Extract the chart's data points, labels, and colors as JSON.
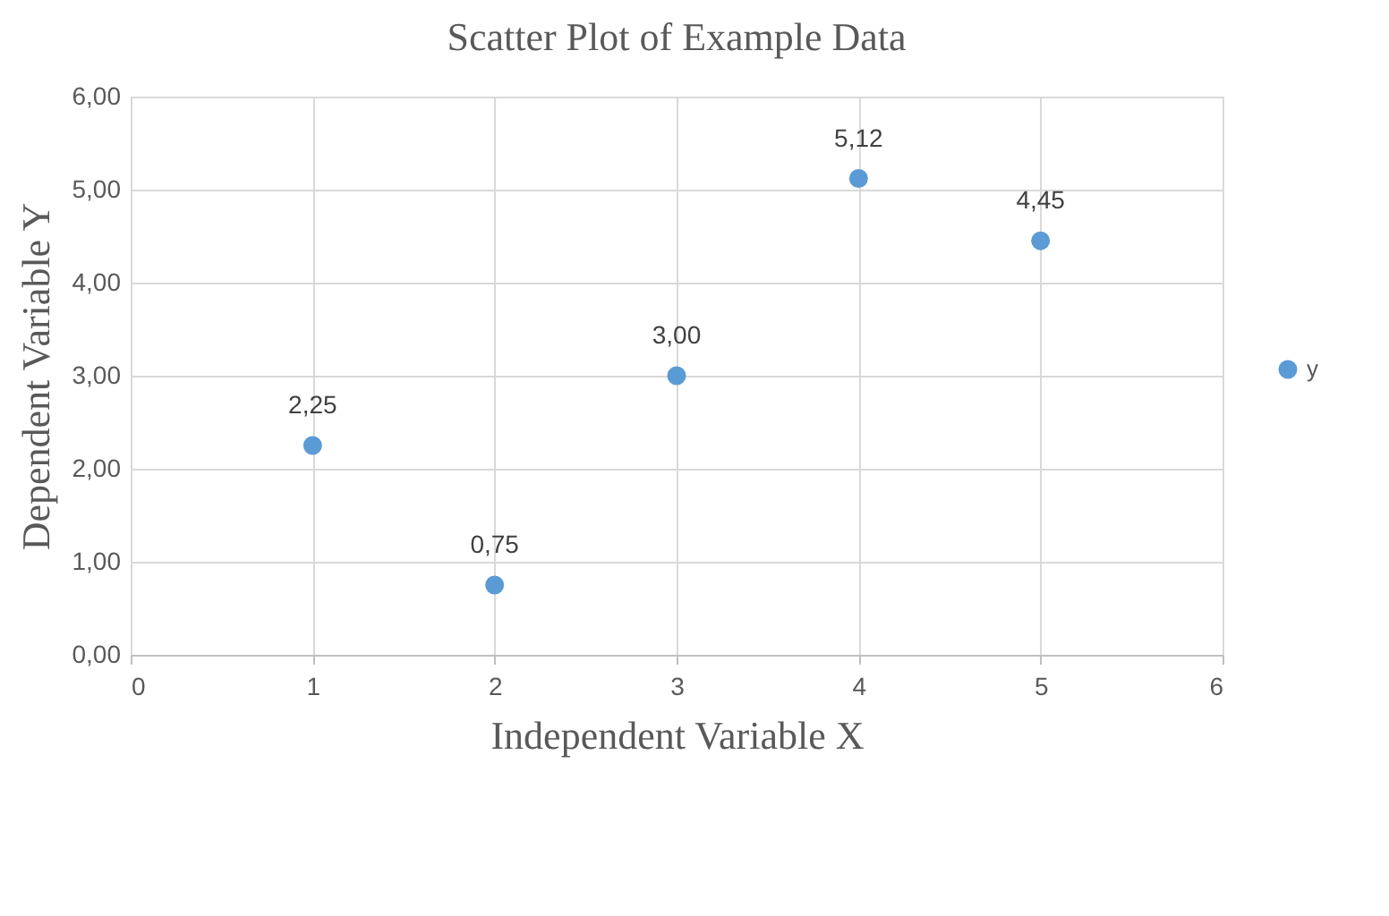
{
  "chart_data": {
    "type": "scatter",
    "title": "Scatter Plot of Example Data",
    "xlabel": "Independent Variable X",
    "ylabel": "Dependent Variable Y",
    "x": [
      1,
      2,
      3,
      4,
      5
    ],
    "series": [
      {
        "name": "y",
        "color": "#5b9bd5",
        "values": [
          2.25,
          0.75,
          3.0,
          5.12,
          4.45
        ],
        "value_labels": [
          "2,25",
          "0,75",
          "3,00",
          "5,12",
          "4,45"
        ]
      }
    ],
    "xlim": [
      0,
      6
    ],
    "xticks": [
      0,
      1,
      2,
      3,
      4,
      5,
      6
    ],
    "ylim": [
      0,
      6
    ],
    "yticks": [
      {
        "value": 0,
        "label": "0,00"
      },
      {
        "value": 1,
        "label": "1,00"
      },
      {
        "value": 2,
        "label": "2,00"
      },
      {
        "value": 3,
        "label": "3,00"
      },
      {
        "value": 4,
        "label": "4,00"
      },
      {
        "value": 5,
        "label": "5,00"
      },
      {
        "value": 6,
        "label": "6,00"
      }
    ],
    "grid": true,
    "legend": "right",
    "marker": "circle"
  }
}
